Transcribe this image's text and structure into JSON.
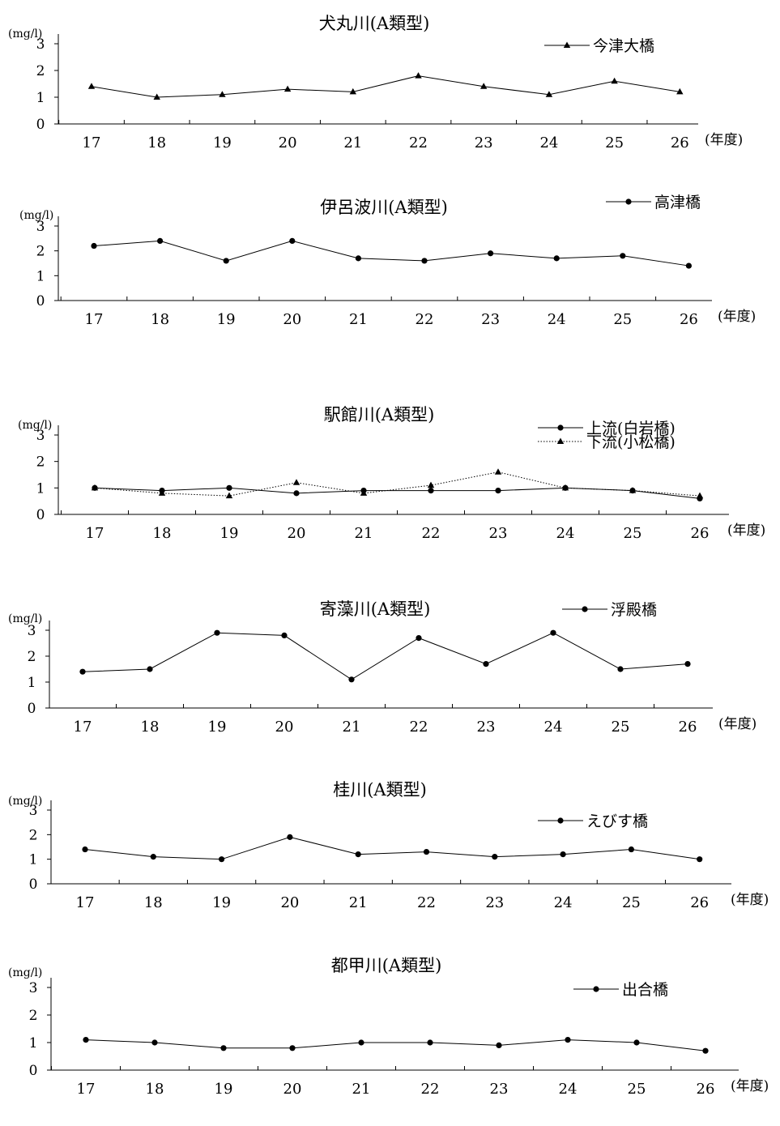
{
  "chart_data": [
    {
      "type": "line",
      "title": "犬丸川(A類型)",
      "ylabel": "(mg/l)",
      "xlabel": "(年度)",
      "categories": [
        "17",
        "18",
        "19",
        "20",
        "21",
        "22",
        "23",
        "24",
        "25",
        "26"
      ],
      "ylim": [
        0,
        3
      ],
      "yticks": [
        0,
        1,
        2,
        3
      ],
      "grid": false,
      "legend_position": "top-right",
      "series": [
        {
          "name": "今津大橋",
          "marker": "triangle",
          "line": "solid",
          "values": [
            1.4,
            1.0,
            1.1,
            1.3,
            1.2,
            1.8,
            1.4,
            1.1,
            1.6,
            1.2
          ]
        }
      ]
    },
    {
      "type": "line",
      "title": "伊呂波川(A類型)",
      "ylabel": "(mg/l)",
      "xlabel": "(年度)",
      "categories": [
        "17",
        "18",
        "19",
        "20",
        "21",
        "22",
        "23",
        "24",
        "25",
        "26"
      ],
      "ylim": [
        0,
        3
      ],
      "yticks": [
        0,
        1,
        2,
        3
      ],
      "grid": false,
      "legend_position": "top-right",
      "series": [
        {
          "name": "高津橋",
          "marker": "circle",
          "line": "solid",
          "values": [
            2.2,
            2.4,
            1.6,
            2.4,
            1.7,
            1.6,
            1.9,
            1.7,
            1.8,
            1.4
          ]
        }
      ]
    },
    {
      "type": "line",
      "title": "駅館川(A類型)",
      "ylabel": "(mg/l)",
      "xlabel": "(年度)",
      "categories": [
        "17",
        "18",
        "19",
        "20",
        "21",
        "22",
        "23",
        "24",
        "25",
        "26"
      ],
      "ylim": [
        0,
        3
      ],
      "yticks": [
        0,
        1,
        2,
        3
      ],
      "grid": false,
      "legend_position": "top-right",
      "series": [
        {
          "name": "上流(白岩橋)",
          "marker": "circle",
          "line": "solid",
          "values": [
            1.0,
            0.9,
            1.0,
            0.8,
            0.9,
            0.9,
            0.9,
            1.0,
            0.9,
            0.6
          ]
        },
        {
          "name": "下流(小松橋)",
          "marker": "triangle",
          "line": "dotted",
          "values": [
            1.0,
            0.8,
            0.7,
            1.2,
            0.8,
            1.1,
            1.6,
            1.0,
            0.9,
            0.7
          ]
        }
      ]
    },
    {
      "type": "line",
      "title": "寄藻川(A類型)",
      "ylabel": "(mg/l)",
      "xlabel": "(年度)",
      "categories": [
        "17",
        "18",
        "19",
        "20",
        "21",
        "22",
        "23",
        "24",
        "25",
        "26"
      ],
      "ylim": [
        0,
        3
      ],
      "yticks": [
        0,
        1,
        2,
        3
      ],
      "grid": false,
      "legend_position": "top-right",
      "series": [
        {
          "name": "浮殿橋",
          "marker": "circle",
          "line": "solid",
          "values": [
            1.4,
            1.5,
            2.9,
            2.8,
            1.1,
            2.7,
            1.7,
            2.9,
            1.5,
            1.7
          ]
        }
      ]
    },
    {
      "type": "line",
      "title": "桂川(A類型)",
      "ylabel": "(mg/l)",
      "xlabel": "(年度)",
      "categories": [
        "17",
        "18",
        "19",
        "20",
        "21",
        "22",
        "23",
        "24",
        "25",
        "26"
      ],
      "ylim": [
        0,
        3
      ],
      "yticks": [
        0,
        1,
        2,
        3
      ],
      "grid": false,
      "legend_position": "top-right",
      "series": [
        {
          "name": "えびす橋",
          "marker": "circle",
          "line": "solid",
          "values": [
            1.4,
            1.1,
            1.0,
            1.9,
            1.2,
            1.3,
            1.1,
            1.2,
            1.4,
            1.0
          ]
        }
      ]
    },
    {
      "type": "line",
      "title": "都甲川(A類型)",
      "ylabel": "(mg/l)",
      "xlabel": "(年度)",
      "categories": [
        "17",
        "18",
        "19",
        "20",
        "21",
        "22",
        "23",
        "24",
        "25",
        "26"
      ],
      "ylim": [
        0,
        3
      ],
      "yticks": [
        0,
        1,
        2,
        3
      ],
      "grid": false,
      "legend_position": "top-right",
      "series": [
        {
          "name": "出合橋",
          "marker": "circle",
          "line": "solid",
          "values": [
            1.1,
            1.0,
            0.8,
            0.8,
            1.0,
            1.0,
            0.9,
            1.1,
            1.0,
            0.7
          ]
        }
      ]
    }
  ]
}
